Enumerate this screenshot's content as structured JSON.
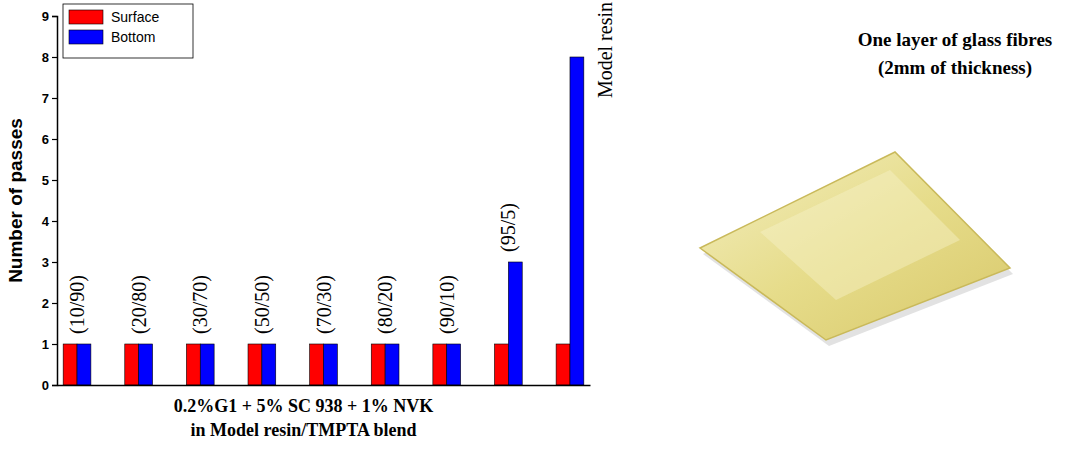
{
  "chart_data": {
    "type": "bar",
    "ylabel": "Number of passes",
    "xlabel": [
      "0.2%G1 + 5% SC 938 + 1% NVK",
      "in Model resin/TMPTA blend"
    ],
    "categories": [
      "(10/90)",
      "(20/80)",
      "(30/70)",
      "(50/50)",
      "(70/30)",
      "(80/20)",
      "(90/10)",
      "(95/5)",
      "Model resin"
    ],
    "series": [
      {
        "name": "Surface",
        "color": "#ff0000",
        "values": [
          1,
          1,
          1,
          1,
          1,
          1,
          1,
          1,
          1
        ]
      },
      {
        "name": "Bottom",
        "color": "#0000ff",
        "values": [
          1,
          1,
          1,
          1,
          1,
          1,
          1,
          3,
          8
        ]
      }
    ],
    "ylim": [
      0,
      9
    ],
    "yticks": [
      0,
      1,
      2,
      3,
      4,
      5,
      6,
      7,
      8,
      9
    ],
    "grid": false,
    "legend": "upper left",
    "data_labels": false,
    "tick_labels": "y",
    "annotations": [
      "One layer of glass fibres",
      "(2mm of thickness)"
    ]
  }
}
